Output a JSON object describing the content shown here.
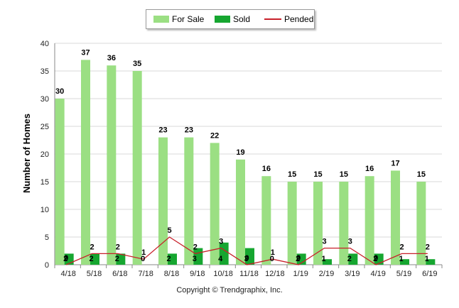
{
  "legend": {
    "for_sale": "For Sale",
    "sold": "Sold",
    "pended": "Pended"
  },
  "copyright": "Copyright © Trendgraphix, Inc.",
  "colors": {
    "for_sale": "#9bdf83",
    "sold": "#16a630",
    "pended": "#c8202a",
    "grid": "#d9d9d9"
  },
  "chart_data": {
    "type": "bar",
    "title": "",
    "xlabel": "",
    "ylabel": "Number of Homes",
    "ylim": [
      0,
      40
    ],
    "yticks": [
      0,
      5,
      10,
      15,
      20,
      25,
      30,
      35,
      40
    ],
    "grid": true,
    "legend_position": "top-center",
    "categories": [
      "4/18",
      "5/18",
      "6/18",
      "7/18",
      "8/18",
      "9/18",
      "10/18",
      "11/18",
      "12/18",
      "1/19",
      "2/19",
      "3/19",
      "4/19",
      "5/19",
      "6/19"
    ],
    "series": [
      {
        "name": "For Sale",
        "kind": "bar",
        "values": [
          30,
          37,
          36,
          35,
          23,
          23,
          22,
          19,
          16,
          15,
          15,
          15,
          16,
          17,
          15
        ]
      },
      {
        "name": "Sold",
        "kind": "bar",
        "values": [
          2,
          2,
          2,
          0,
          2,
          3,
          4,
          3,
          0,
          2,
          1,
          2,
          2,
          1,
          1
        ]
      },
      {
        "name": "Pended",
        "kind": "line",
        "values": [
          0,
          2,
          2,
          1,
          5,
          2,
          3,
          0,
          1,
          0,
          3,
          3,
          0,
          2,
          2
        ]
      }
    ]
  }
}
